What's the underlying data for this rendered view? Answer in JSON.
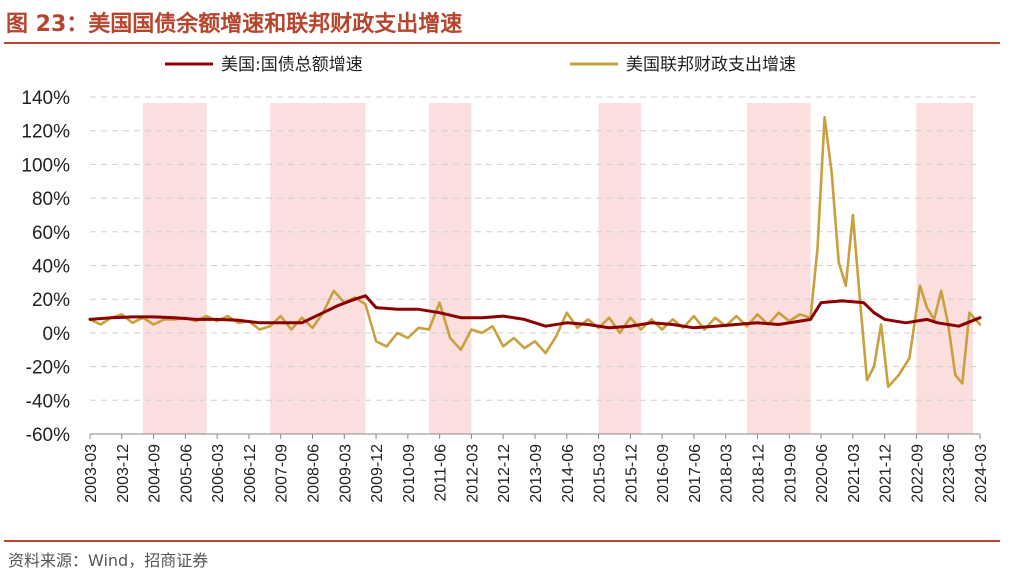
{
  "figure": {
    "title": "图 23：美国国债余额增速和联邦财政支出增速",
    "source": "资料来源：Wind，招商证券"
  },
  "chart_data": {
    "type": "line",
    "title": "",
    "xlabel": "",
    "ylabel": "",
    "ylim": [
      -60,
      140
    ],
    "yticks": [
      -60,
      -40,
      -20,
      0,
      20,
      40,
      60,
      80,
      100,
      120,
      140
    ],
    "ytick_labels": [
      "-60%",
      "-40%",
      "-20%",
      "0%",
      "20%",
      "40%",
      "60%",
      "80%",
      "100%",
      "120%",
      "140%"
    ],
    "xtick_labels": [
      "2003-03",
      "2003-12",
      "2004-09",
      "2005-06",
      "2006-03",
      "2006-12",
      "2007-09",
      "2008-06",
      "2009-03",
      "2009-12",
      "2010-09",
      "2011-06",
      "2012-03",
      "2012-12",
      "2013-09",
      "2014-06",
      "2015-03",
      "2015-12",
      "2016-09",
      "2017-06",
      "2018-03",
      "2018-12",
      "2019-09",
      "2020-06",
      "2021-03",
      "2021-12",
      "2022-09",
      "2023-06",
      "2024-03"
    ],
    "legend_position": "top",
    "grid": true,
    "shaded_periods": [
      {
        "start": "2004-06",
        "end": "2005-12"
      },
      {
        "start": "2007-06",
        "end": "2009-09"
      },
      {
        "start": "2011-03",
        "end": "2012-03"
      },
      {
        "start": "2015-03",
        "end": "2016-03"
      },
      {
        "start": "2018-09",
        "end": "2020-03"
      },
      {
        "start": "2022-09",
        "end": "2024-01"
      }
    ],
    "series": [
      {
        "name": "美国:国债总额增速",
        "color": "#8b0000",
        "points": [
          [
            "2003-03",
            8
          ],
          [
            "2003-09",
            9
          ],
          [
            "2004-03",
            9.5
          ],
          [
            "2004-09",
            9.5
          ],
          [
            "2005-03",
            9
          ],
          [
            "2005-09",
            8
          ],
          [
            "2006-03",
            8
          ],
          [
            "2006-09",
            7.5
          ],
          [
            "2007-03",
            6
          ],
          [
            "2007-09",
            6
          ],
          [
            "2008-03",
            6
          ],
          [
            "2008-09",
            12
          ],
          [
            "2009-01",
            16
          ],
          [
            "2009-06",
            20
          ],
          [
            "2009-09",
            22
          ],
          [
            "2009-12",
            15
          ],
          [
            "2010-06",
            14
          ],
          [
            "2010-12",
            14
          ],
          [
            "2011-06",
            12
          ],
          [
            "2011-12",
            9
          ],
          [
            "2012-06",
            9
          ],
          [
            "2012-12",
            10
          ],
          [
            "2013-06",
            8
          ],
          [
            "2013-12",
            4
          ],
          [
            "2014-06",
            6
          ],
          [
            "2014-12",
            5
          ],
          [
            "2015-06",
            3
          ],
          [
            "2015-12",
            4
          ],
          [
            "2016-06",
            6
          ],
          [
            "2016-12",
            5
          ],
          [
            "2017-06",
            3
          ],
          [
            "2017-12",
            4
          ],
          [
            "2018-06",
            5
          ],
          [
            "2018-12",
            6
          ],
          [
            "2019-06",
            5
          ],
          [
            "2019-12",
            7
          ],
          [
            "2020-03",
            8
          ],
          [
            "2020-06",
            18
          ],
          [
            "2020-12",
            19
          ],
          [
            "2021-06",
            18
          ],
          [
            "2021-09",
            12
          ],
          [
            "2021-12",
            8
          ],
          [
            "2022-06",
            6
          ],
          [
            "2022-12",
            8
          ],
          [
            "2023-03",
            6
          ],
          [
            "2023-09",
            4
          ],
          [
            "2024-03",
            9
          ]
        ]
      },
      {
        "name": "美国联邦财政支出增速",
        "color": "#c9a03e",
        "points": [
          [
            "2003-03",
            8
          ],
          [
            "2003-06",
            5
          ],
          [
            "2003-09",
            9
          ],
          [
            "2003-12",
            11
          ],
          [
            "2004-03",
            6
          ],
          [
            "2004-06",
            9
          ],
          [
            "2004-09",
            5
          ],
          [
            "2004-12",
            8
          ],
          [
            "2005-03",
            8
          ],
          [
            "2005-06",
            9
          ],
          [
            "2005-09",
            7
          ],
          [
            "2005-12",
            10
          ],
          [
            "2006-03",
            7
          ],
          [
            "2006-06",
            10
          ],
          [
            "2006-09",
            6
          ],
          [
            "2006-12",
            7
          ],
          [
            "2007-03",
            2
          ],
          [
            "2007-06",
            4
          ],
          [
            "2007-09",
            10
          ],
          [
            "2007-12",
            2
          ],
          [
            "2008-03",
            9
          ],
          [
            "2008-06",
            3
          ],
          [
            "2008-09",
            12
          ],
          [
            "2008-12",
            25
          ],
          [
            "2009-03",
            18
          ],
          [
            "2009-06",
            21
          ],
          [
            "2009-09",
            17
          ],
          [
            "2009-12",
            -5
          ],
          [
            "2010-03",
            -8
          ],
          [
            "2010-06",
            0
          ],
          [
            "2010-09",
            -3
          ],
          [
            "2010-12",
            3
          ],
          [
            "2011-03",
            2
          ],
          [
            "2011-06",
            18
          ],
          [
            "2011-09",
            -3
          ],
          [
            "2011-12",
            -10
          ],
          [
            "2012-03",
            2
          ],
          [
            "2012-06",
            0
          ],
          [
            "2012-09",
            4
          ],
          [
            "2012-12",
            -8
          ],
          [
            "2013-03",
            -3
          ],
          [
            "2013-06",
            -9
          ],
          [
            "2013-09",
            -5
          ],
          [
            "2013-12",
            -12
          ],
          [
            "2014-03",
            -2
          ],
          [
            "2014-06",
            12
          ],
          [
            "2014-09",
            3
          ],
          [
            "2014-12",
            8
          ],
          [
            "2015-03",
            3
          ],
          [
            "2015-06",
            9
          ],
          [
            "2015-09",
            0
          ],
          [
            "2015-12",
            9
          ],
          [
            "2016-03",
            2
          ],
          [
            "2016-06",
            8
          ],
          [
            "2016-09",
            2
          ],
          [
            "2016-12",
            8
          ],
          [
            "2017-03",
            3
          ],
          [
            "2017-06",
            10
          ],
          [
            "2017-09",
            2
          ],
          [
            "2017-12",
            9
          ],
          [
            "2018-03",
            4
          ],
          [
            "2018-06",
            10
          ],
          [
            "2018-09",
            4
          ],
          [
            "2018-12",
            11
          ],
          [
            "2019-03",
            5
          ],
          [
            "2019-06",
            12
          ],
          [
            "2019-09",
            7
          ],
          [
            "2019-12",
            11
          ],
          [
            "2020-03",
            9
          ],
          [
            "2020-05",
            50
          ],
          [
            "2020-07",
            128
          ],
          [
            "2020-09",
            95
          ],
          [
            "2020-11",
            42
          ],
          [
            "2021-01",
            28
          ],
          [
            "2021-03",
            70
          ],
          [
            "2021-05",
            20
          ],
          [
            "2021-07",
            -28
          ],
          [
            "2021-09",
            -20
          ],
          [
            "2021-11",
            5
          ],
          [
            "2022-01",
            -32
          ],
          [
            "2022-04",
            -25
          ],
          [
            "2022-07",
            -15
          ],
          [
            "2022-10",
            28
          ],
          [
            "2022-12",
            15
          ],
          [
            "2023-02",
            8
          ],
          [
            "2023-04",
            25
          ],
          [
            "2023-06",
            5
          ],
          [
            "2023-08",
            -25
          ],
          [
            "2023-10",
            -30
          ],
          [
            "2023-12",
            12
          ],
          [
            "2024-03",
            5
          ]
        ]
      }
    ]
  }
}
